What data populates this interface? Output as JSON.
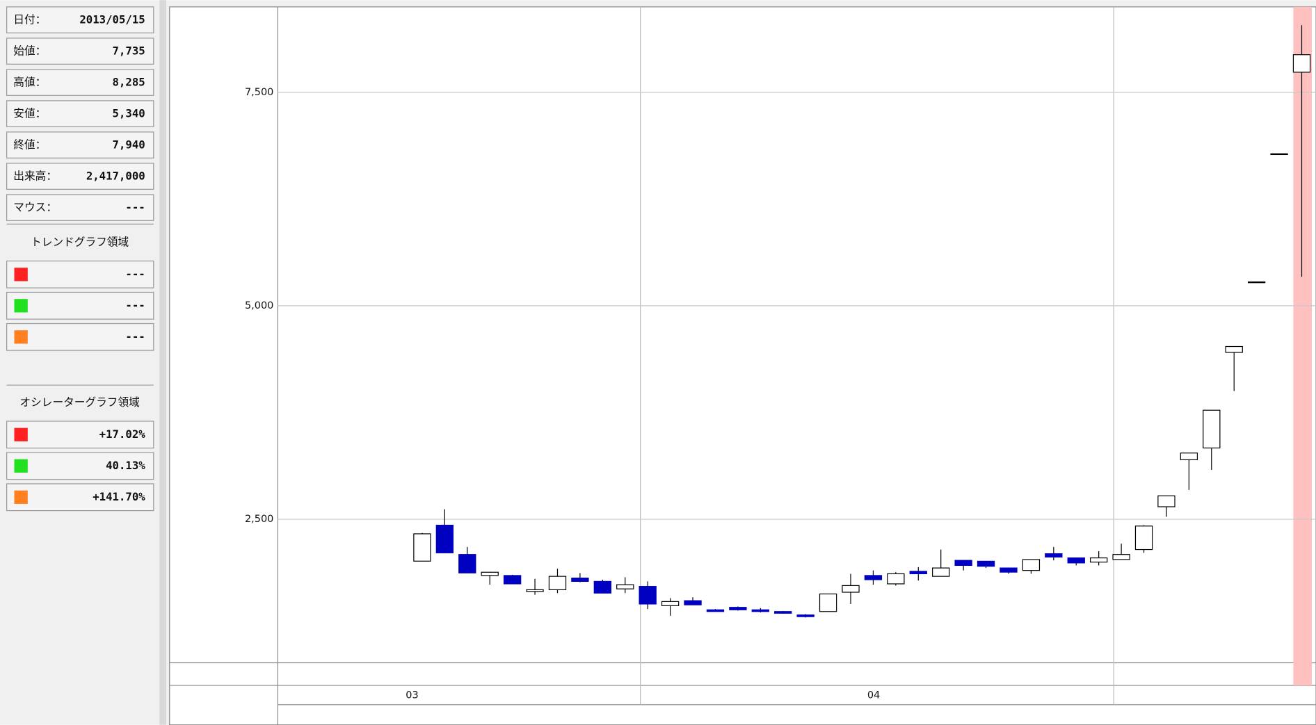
{
  "info": [
    {
      "label": "日付：",
      "value": "2013/05/15"
    },
    {
      "label": "始値：",
      "value": "7,735"
    },
    {
      "label": "高値：",
      "value": "8,285"
    },
    {
      "label": "安値：",
      "value": "5,340"
    },
    {
      "label": "終値：",
      "value": "7,940"
    },
    {
      "label": "出来高：",
      "value": "2,417,000"
    },
    {
      "label": "マウス：",
      "value": "---"
    }
  ],
  "trend": {
    "title": "トレンドグラフ領域",
    "rows": [
      {
        "color": "#ff2020",
        "value": "---"
      },
      {
        "color": "#20e020",
        "value": "---"
      },
      {
        "color": "#ff8020",
        "value": "---"
      }
    ]
  },
  "oscillator": {
    "title": "オシレーターグラフ領域",
    "rows": [
      {
        "color": "#ff2020",
        "value": "+17.02%"
      },
      {
        "color": "#20e020",
        "value": "40.13%"
      },
      {
        "color": "#ff8020",
        "value": "+141.70%"
      }
    ]
  },
  "chart_data": {
    "type": "candlestick",
    "month_labels": [
      "03",
      "04"
    ],
    "up_color": "#ffffff",
    "down_color": "#0000c0",
    "highlight_color": "#ffc0c0",
    "ylim": [
      820,
      8500
    ],
    "yticks": [
      {
        "value": 2500,
        "label": "2,500"
      },
      {
        "value": 5000,
        "label": "5,000"
      },
      {
        "value": 7500,
        "label": "7,500"
      }
    ],
    "grid": true,
    "open": [
      2010,
      2431,
      2088,
      1842,
      1842,
      1655,
      1675,
      1812,
      1773,
      1685,
      1714,
      1488,
      1547,
      1440,
      1469,
      1440,
      1420,
      1380,
      1420,
      1646,
      1842,
      1744,
      1891,
      1832,
      2019,
      2009,
      1930,
      1901,
      2097,
      2048,
      1999,
      2029,
      2146,
      2647,
      3197,
      3335,
      4454,
      5280,
      6780,
      7735
    ],
    "high": [
      2340,
      2618,
      2176,
      1885,
      1850,
      1803,
      1921,
      1871,
      1793,
      1822,
      1773,
      1577,
      1587,
      1450,
      1479,
      1460,
      1425,
      1390,
      1626,
      1862,
      1901,
      1881,
      1940,
      2146,
      2019,
      2009,
      1930,
      2029,
      2176,
      2048,
      2127,
      2215,
      2431,
      2775,
      3276,
      3777,
      4523,
      5280,
      6780,
      8285
    ],
    "low": [
      2010,
      2107,
      1872,
      1734,
      1744,
      1616,
      1636,
      1763,
      1636,
      1636,
      1449,
      1371,
      1498,
      1420,
      1430,
      1410,
      1395,
      1350,
      1420,
      1508,
      1734,
      1724,
      1783,
      1832,
      1901,
      1930,
      1862,
      1862,
      2019,
      1960,
      1960,
      2029,
      2107,
      2529,
      2844,
      3079,
      4002,
      5280,
      6780,
      5340
    ],
    "close": [
      2330,
      2107,
      1872,
      1880,
      1744,
      1675,
      1832,
      1773,
      1636,
      1734,
      1508,
      1537,
      1498,
      1420,
      1440,
      1420,
      1400,
      1360,
      1626,
      1724,
      1793,
      1862,
      1862,
      1930,
      1960,
      1950,
      1881,
      2029,
      2058,
      1989,
      2048,
      2088,
      2421,
      2775,
      3276,
      3777,
      4523,
      5280,
      6780,
      7940
    ]
  }
}
